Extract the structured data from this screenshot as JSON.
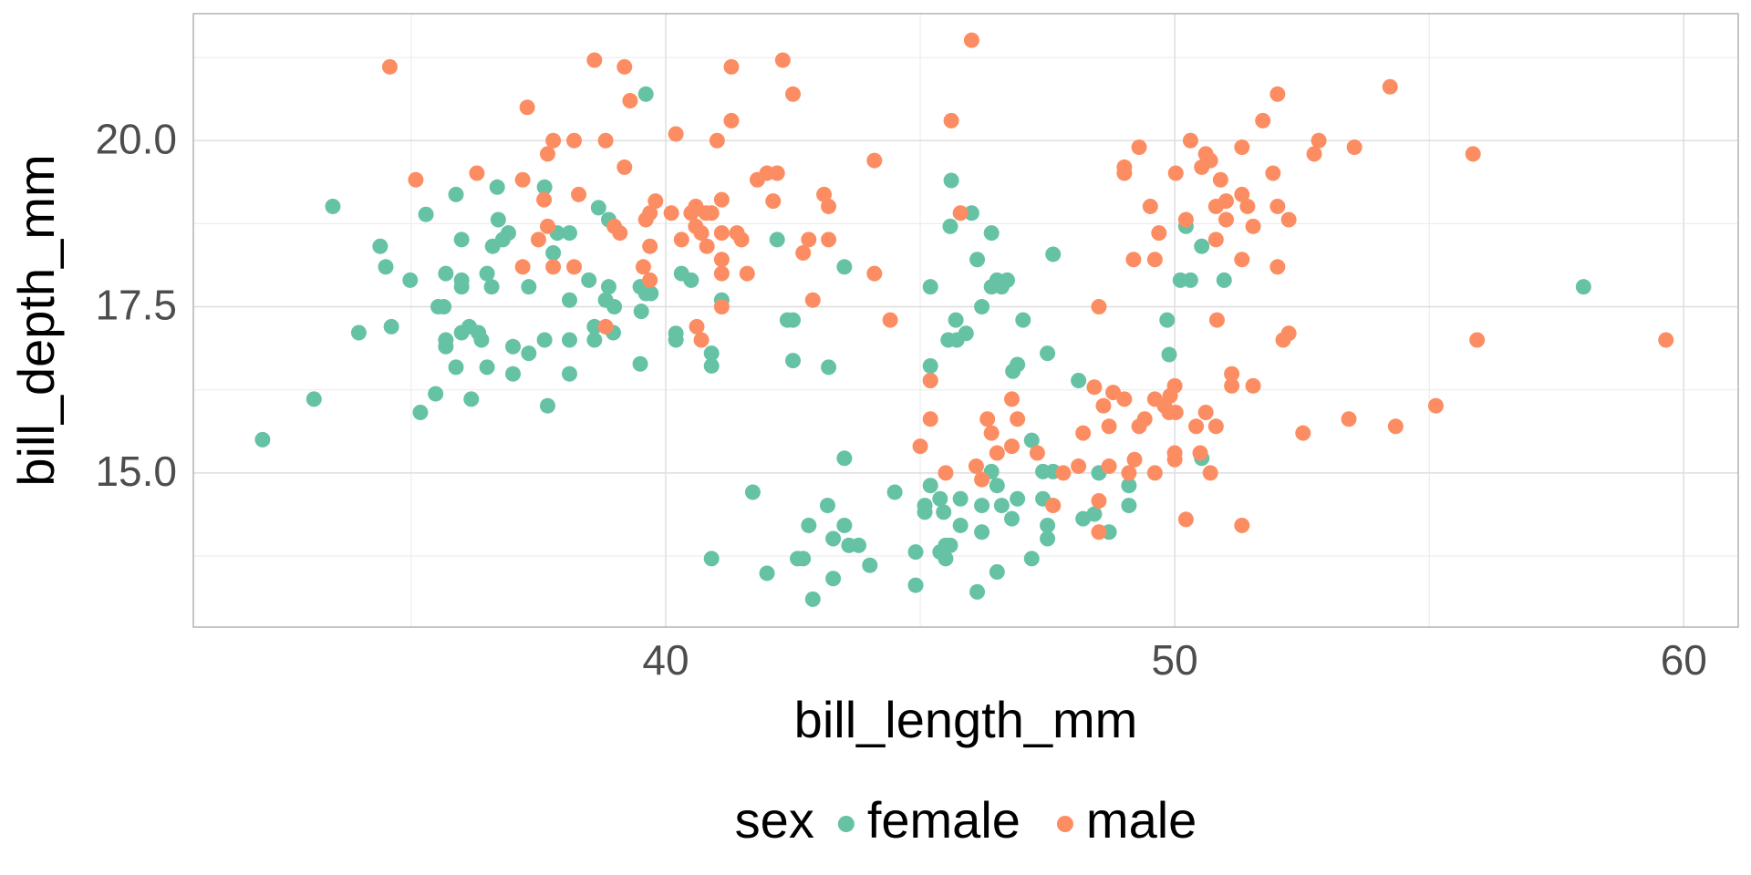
{
  "chart_data": {
    "type": "scatter",
    "x_label": "bill_length_mm",
    "y_label": "bill_depth_mm",
    "legend_title": "sex",
    "legend_position": "bottom",
    "xlim": [
      30.72,
      61.07
    ],
    "ylim": [
      12.68,
      21.91
    ],
    "xticks": [
      40,
      50,
      60
    ],
    "yticks": [
      {
        "value": 15,
        "label": "15.0"
      },
      {
        "value": 17.5,
        "label": "17.5"
      },
      {
        "value": 20,
        "label": "20.0"
      }
    ],
    "x_minor_grid": [
      35,
      45,
      55
    ],
    "y_minor_grid": [
      13.75,
      16.25,
      18.75,
      21.25
    ],
    "grid": true,
    "series": [
      {
        "name": "female",
        "color": "#66c2a5",
        "x": [
          32.08,
          33.09,
          33.46,
          33.97,
          34.39,
          34.5,
          34.61,
          34.98,
          35.18,
          35.29,
          35.48,
          35.53,
          35.64,
          35.68,
          35.68,
          35.68,
          35.88,
          35.88,
          35.99,
          35.99,
          35.99,
          35.99,
          36.14,
          36.18,
          36.32,
          36.38,
          36.49,
          36.49,
          36.58,
          36.69,
          36.6,
          36.71,
          36.8,
          36.91,
          37.0,
          37.0,
          37.31,
          37.31,
          37.62,
          37.62,
          37.68,
          37.79,
          37.87,
          38.11,
          38.11,
          38.11,
          38.11,
          38.49,
          38.6,
          38.6,
          38.68,
          38.82,
          38.88,
          38.88,
          38.99,
          38.97,
          39.5,
          39.5,
          39.52,
          39.61,
          39.61,
          39.71,
          40.2,
          40.2,
          40.31,
          40.5,
          40.9,
          40.9,
          40.9,
          41.1,
          41.71,
          41.99,
          42.19,
          42.39,
          42.5,
          42.5,
          42.59,
          42.7,
          42.81,
          42.89,
          43.18,
          43.29,
          43.29,
          43.51,
          43.51,
          43.51,
          43.2,
          43.6,
          43.79,
          44.01,
          44.5,
          44.91,
          44.91,
          45.09,
          45.09,
          45.2,
          45.2,
          45.2,
          45.2,
          45.39,
          45.39,
          45.46,
          45.5,
          45.5,
          45.55,
          45.59,
          45.59,
          45.61,
          45.7,
          45.72,
          45.79,
          45.9,
          45.79,
          46.01,
          46.12,
          46.12,
          46.21,
          46.21,
          46.21,
          46.4,
          46.4,
          46.4,
          46.51,
          46.51,
          46.51,
          46.6,
          46.6,
          46.71,
          46.8,
          46.82,
          46.91,
          46.91,
          47.02,
          47.19,
          47.19,
          47.41,
          47.41,
          47.5,
          47.5,
          47.5,
          47.61,
          47.61,
          48.11,
          48.2,
          48.42,
          48.51,
          48.71,
          49.1,
          49.1,
          49.85,
          49.89,
          50.11,
          50.22,
          50.53,
          50.31,
          50.53,
          50.97,
          58.03
        ],
        "y": [
          15.5,
          16.11,
          19.01,
          17.11,
          18.41,
          18.1,
          17.2,
          17.9,
          15.91,
          18.89,
          16.19,
          17.5,
          17.5,
          18.0,
          17.0,
          16.9,
          19.19,
          16.59,
          18.51,
          17.11,
          17.9,
          17.8,
          17.2,
          16.11,
          17.11,
          17.0,
          18.0,
          16.59,
          17.8,
          19.3,
          18.41,
          18.81,
          18.51,
          18.61,
          16.9,
          16.49,
          17.8,
          16.8,
          19.3,
          17.0,
          16.01,
          18.31,
          18.61,
          18.61,
          17.6,
          17.0,
          16.49,
          17.9,
          17.2,
          17.0,
          18.99,
          17.6,
          17.8,
          18.81,
          17.5,
          17.11,
          16.64,
          17.8,
          17.43,
          20.7,
          17.7,
          17.7,
          17.1,
          17.0,
          18.0,
          17.9,
          16.8,
          16.61,
          13.71,
          17.6,
          14.71,
          13.49,
          18.51,
          17.3,
          17.3,
          16.69,
          13.71,
          13.71,
          14.21,
          13.1,
          14.51,
          14.01,
          13.41,
          15.22,
          14.21,
          18.1,
          16.59,
          13.91,
          13.91,
          13.61,
          14.71,
          13.81,
          13.31,
          14.41,
          14.51,
          17.8,
          16.61,
          16.39,
          14.81,
          13.81,
          14.61,
          14.41,
          13.91,
          13.71,
          17.0,
          18.71,
          13.91,
          19.4,
          17.3,
          17.0,
          14.21,
          17.1,
          14.61,
          18.91,
          18.21,
          13.21,
          17.5,
          14.51,
          14.11,
          18.61,
          17.8,
          15.02,
          17.9,
          14.81,
          13.51,
          14.51,
          17.8,
          17.9,
          14.31,
          16.53,
          14.61,
          16.63,
          17.3,
          13.71,
          15.49,
          14.61,
          15.02,
          16.8,
          14.21,
          14.01,
          18.29,
          15.02,
          16.39,
          14.31,
          14.38,
          15.0,
          14.11,
          14.51,
          14.81,
          17.3,
          16.78,
          17.9,
          18.71,
          18.41,
          17.9,
          15.22,
          17.9,
          17.8
        ]
      },
      {
        "name": "male",
        "color": "#fc8d62",
        "x": [
          34.58,
          35.09,
          36.29,
          37.19,
          37.28,
          37.19,
          37.5,
          37.61,
          37.68,
          37.68,
          37.79,
          37.79,
          38.2,
          38.2,
          38.29,
          38.6,
          38.82,
          38.82,
          38.99,
          39.1,
          39.19,
          39.19,
          39.3,
          39.56,
          39.61,
          39.69,
          39.69,
          39.69,
          39.8,
          40.11,
          40.2,
          40.31,
          40.5,
          40.59,
          40.59,
          40.7,
          40.61,
          40.7,
          40.79,
          40.81,
          40.9,
          41.01,
          41.1,
          41.1,
          41.1,
          41.1,
          41.1,
          41.29,
          41.29,
          41.4,
          41.49,
          41.6,
          41.8,
          41.99,
          42.11,
          42.19,
          42.3,
          42.5,
          42.7,
          42.81,
          42.89,
          43.11,
          43.2,
          43.2,
          44.1,
          44.1,
          44.41,
          45.0,
          45.2,
          45.2,
          45.5,
          45.61,
          45.79,
          46.01,
          46.1,
          46.21,
          46.32,
          46.4,
          46.51,
          46.8,
          46.8,
          46.91,
          47.3,
          47.61,
          47.81,
          48.11,
          48.2,
          48.42,
          48.51,
          48.51,
          48.51,
          48.6,
          48.71,
          48.71,
          48.79,
          49.01,
          49.01,
          49.01,
          49.1,
          49.19,
          49.21,
          49.3,
          49.3,
          49.41,
          49.52,
          49.61,
          49.61,
          49.61,
          49.69,
          49.8,
          49.89,
          49.91,
          50.0,
          50.0,
          50.0,
          50.02,
          50.02,
          50.22,
          50.22,
          50.31,
          50.42,
          50.5,
          50.53,
          50.61,
          50.61,
          50.7,
          50.7,
          50.81,
          50.81,
          50.81,
          50.83,
          50.9,
          51.01,
          51.01,
          51.12,
          51.12,
          51.32,
          51.32,
          51.32,
          51.32,
          51.43,
          51.54,
          51.54,
          51.73,
          51.93,
          52.02,
          52.02,
          52.02,
          52.13,
          52.24,
          52.24,
          52.52,
          52.74,
          52.83,
          53.42,
          53.53,
          54.23,
          54.34,
          55.13,
          55.86,
          55.94,
          59.65
        ],
        "y": [
          21.11,
          19.41,
          19.51,
          19.41,
          20.5,
          18.1,
          18.51,
          19.11,
          18.71,
          19.8,
          20.0,
          18.1,
          20.0,
          18.1,
          19.19,
          21.21,
          20.0,
          17.2,
          18.71,
          18.61,
          21.11,
          19.6,
          20.6,
          18.1,
          18.81,
          18.91,
          18.41,
          17.9,
          19.09,
          18.91,
          20.1,
          18.51,
          18.91,
          19.01,
          18.71,
          18.61,
          17.2,
          17.0,
          18.91,
          18.41,
          18.91,
          20.0,
          18.61,
          18.21,
          18.0,
          17.5,
          19.11,
          21.11,
          20.3,
          18.61,
          18.51,
          18.0,
          19.41,
          19.51,
          19.09,
          19.51,
          21.21,
          20.7,
          18.31,
          18.51,
          17.6,
          19.19,
          19.01,
          18.51,
          19.7,
          18.0,
          17.3,
          15.4,
          16.39,
          15.81,
          15.0,
          20.3,
          18.91,
          21.51,
          15.1,
          14.9,
          15.81,
          15.6,
          15.3,
          16.11,
          15.4,
          15.81,
          15.3,
          14.51,
          15.0,
          15.1,
          15.6,
          16.29,
          17.5,
          14.58,
          14.11,
          16.01,
          15.7,
          15.1,
          16.21,
          16.11,
          19.6,
          19.51,
          15.0,
          18.21,
          15.2,
          15.7,
          19.9,
          15.81,
          19.01,
          18.21,
          16.11,
          15.0,
          18.61,
          16.01,
          15.91,
          16.16,
          16.31,
          15.3,
          15.2,
          19.51,
          15.91,
          18.81,
          14.3,
          20.0,
          15.7,
          15.3,
          19.6,
          15.91,
          19.8,
          19.7,
          15.0,
          19.01,
          18.51,
          15.7,
          17.3,
          19.41,
          19.09,
          18.81,
          16.49,
          16.31,
          19.19,
          19.9,
          18.21,
          14.21,
          19.01,
          18.71,
          16.31,
          20.3,
          19.51,
          20.7,
          18.1,
          19.01,
          17.0,
          18.81,
          17.1,
          15.6,
          19.8,
          20.0,
          15.81,
          19.9,
          20.81,
          15.7,
          16.01,
          19.8,
          17.0,
          17.0
        ]
      }
    ]
  }
}
